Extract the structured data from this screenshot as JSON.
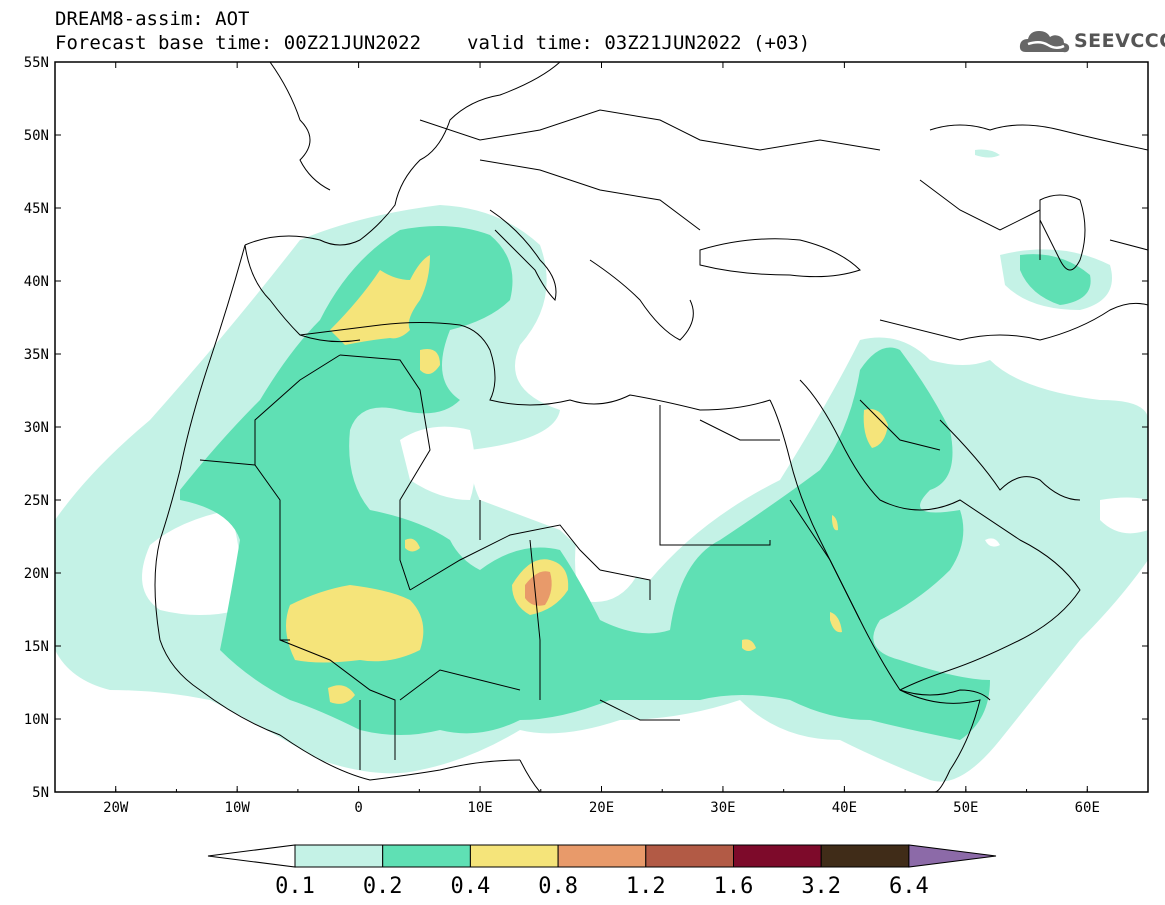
{
  "header": {
    "line1": "DREAM8-assim: AOT",
    "base": "Forecast base time: 00Z21JUN2022",
    "valid": "valid time: 03Z21JUN2022 (+03)"
  },
  "logo": {
    "text": "SEEVCCC",
    "icon": "cloud-logo-icon"
  },
  "map": {
    "lon_range": [
      -25,
      65
    ],
    "lat_range": [
      5,
      55
    ],
    "lon_ticks": [
      "20W",
      "10W",
      "0",
      "10E",
      "20E",
      "30E",
      "40E",
      "50E",
      "60E"
    ],
    "lat_ticks": [
      "55N",
      "50N",
      "45N",
      "40N",
      "35N",
      "30N",
      "25N",
      "20N",
      "15N",
      "10N",
      "5N"
    ]
  },
  "colorbar": {
    "labels": [
      "0.1",
      "0.2",
      "0.4",
      "0.8",
      "1.2",
      "1.6",
      "3.2",
      "6.4"
    ],
    "colors": [
      "#ffffff",
      "#c4f2e6",
      "#5fe0b4",
      "#f5e47a",
      "#e89a6a",
      "#b25a45",
      "#7d0a2a",
      "#402c18",
      "#8c6aa8"
    ]
  }
}
